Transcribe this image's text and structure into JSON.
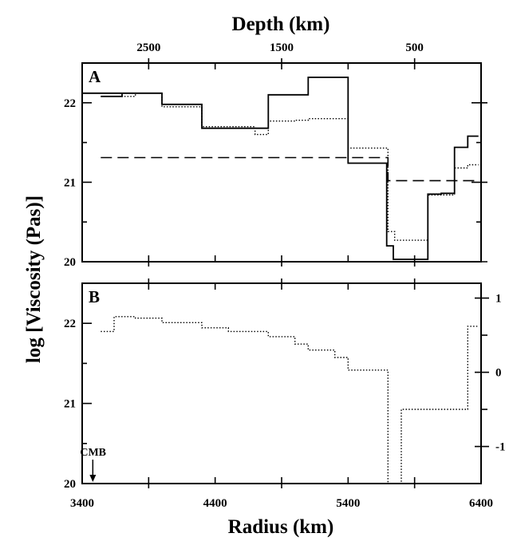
{
  "chart_data": {
    "type": "line",
    "x_label": "Radius (km)",
    "x_top_label": "Depth (km)",
    "y_label": "log [Viscosity (Pas)]",
    "xlim": [
      3400,
      6400
    ],
    "x_ticks": [
      {
        "value": 3400,
        "label": "3400"
      },
      {
        "value": 4400,
        "label": "4400"
      },
      {
        "value": 5400,
        "label": "5400"
      },
      {
        "value": 6400,
        "label": "6400"
      }
    ],
    "top_ticks": [
      {
        "radius": 3900,
        "label": "2500"
      },
      {
        "radius": 4900,
        "label": "1500"
      },
      {
        "radius": 5900,
        "label": "500"
      }
    ],
    "panels": [
      {
        "label": "A",
        "ylim": [
          20,
          22.5
        ],
        "y_ticks": [
          {
            "value": 20,
            "label": "20"
          },
          {
            "value": 21,
            "label": "21"
          },
          {
            "value": 22,
            "label": "22"
          }
        ],
        "series": [
          {
            "style": "solid",
            "x": [
              3540,
              3700,
              3700,
              3400,
              4000,
              4000,
              4300,
              4300,
              4800,
              4800,
              5100,
              5100,
              5400,
              5400,
              5690,
              5690,
              5740,
              5740,
              6000,
              6000,
              6100,
              6100,
              6200,
              6200,
              6300,
              6300,
              6380
            ],
            "y": [
              22.08,
              22.08,
              22.12,
              22.12,
              22.12,
              21.98,
              21.98,
              21.68,
              21.68,
              22.1,
              22.1,
              22.32,
              22.32,
              21.24,
              21.24,
              20.2,
              20.2,
              20.03,
              20.03,
              20.85,
              20.85,
              20.86,
              20.86,
              21.44,
              21.44,
              21.58,
              21.58
            ]
          },
          {
            "style": "dotted",
            "x": [
              3540,
              3800,
              3800,
              4000,
              4000,
              4300,
              4300,
              4700,
              4700,
              4800,
              4800,
              5000,
              5000,
              5100,
              5100,
              5400,
              5400,
              5700,
              5700,
              5750,
              5750,
              6000,
              6000,
              6200,
              6200,
              6300,
              6300,
              6380
            ],
            "y": [
              22.08,
              22.08,
              22.12,
              22.12,
              21.95,
              21.95,
              21.7,
              21.7,
              21.6,
              21.6,
              21.77,
              21.77,
              21.78,
              21.78,
              21.8,
              21.8,
              21.43,
              21.43,
              20.38,
              20.38,
              20.27,
              20.27,
              20.84,
              20.84,
              21.18,
              21.18,
              21.22,
              21.22
            ]
          },
          {
            "style": "dashed",
            "x": [
              3540,
              5700,
              5700,
              6380
            ],
            "y": [
              21.31,
              21.31,
              21.02,
              21.02
            ]
          }
        ]
      },
      {
        "label": "B",
        "ylim": [
          20,
          22.5
        ],
        "y_ticks": [
          {
            "value": 20,
            "label": "20"
          },
          {
            "value": 21,
            "label": "21"
          },
          {
            "value": 22,
            "label": "22"
          }
        ],
        "y2lim": [
          -1.5,
          1.2
        ],
        "y2_ticks": [
          {
            "value": 1,
            "label": "1"
          },
          {
            "value": 0,
            "label": "0"
          },
          {
            "value": -1,
            "label": "-1"
          }
        ],
        "series": [
          {
            "style": "dotted",
            "axis": "right",
            "x": [
              3540,
              3640,
              3640,
              3800,
              3800,
              4000,
              4000,
              4300,
              4300,
              4500,
              4500,
              4800,
              4800,
              5000,
              5000,
              5100,
              5100,
              5300,
              5300,
              5400,
              5400,
              5700,
              5700,
              5800,
              5800,
              6000,
              6000,
              6300,
              6300,
              6380
            ],
            "y": [
              0.55,
              0.55,
              0.75,
              0.75,
              0.73,
              0.73,
              0.67,
              0.67,
              0.6,
              0.6,
              0.55,
              0.55,
              0.48,
              0.48,
              0.38,
              0.38,
              0.3,
              0.3,
              0.2,
              0.2,
              0.03,
              0.03,
              -1.5,
              -1.5,
              -0.5,
              -0.5,
              -0.5,
              -0.5,
              0.62,
              0.62
            ]
          }
        ],
        "annotations": [
          {
            "text": "CMB",
            "x": 3480
          }
        ]
      }
    ]
  }
}
